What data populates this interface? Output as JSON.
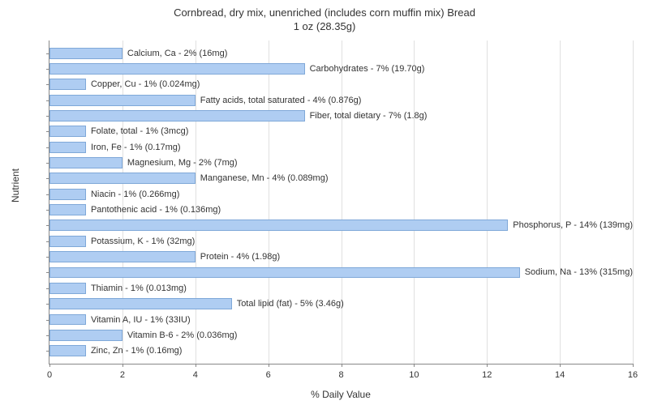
{
  "chart": {
    "type": "bar-horizontal",
    "title_line1": "Cornbread, dry mix, unenriched (includes corn muffin mix) Bread",
    "title_line2": "1 oz (28.35g)",
    "title_fontsize": 13,
    "xlabel": "% Daily Value",
    "ylabel": "Nutrient",
    "label_fontsize": 12,
    "xlim": [
      0,
      16
    ],
    "xtick_step": 2,
    "xticks": [
      0,
      2,
      4,
      6,
      8,
      10,
      12,
      14,
      16
    ],
    "background_color": "#ffffff",
    "grid_color": "#e0e0e0",
    "axis_color": "#888888",
    "bar_color": "#afcdf2",
    "bar_border_color": "#7fa8d8",
    "bar_label_fontsize": 11,
    "tick_fontsize": 11,
    "items": [
      {
        "label": "Calcium, Ca - 2% (16mg)",
        "value": 2
      },
      {
        "label": "Carbohydrates - 7% (19.70g)",
        "value": 7
      },
      {
        "label": "Copper, Cu - 1% (0.024mg)",
        "value": 1
      },
      {
        "label": "Fatty acids, total saturated - 4% (0.876g)",
        "value": 4
      },
      {
        "label": "Fiber, total dietary - 7% (1.8g)",
        "value": 7
      },
      {
        "label": "Folate, total - 1% (3mcg)",
        "value": 1
      },
      {
        "label": "Iron, Fe - 1% (0.17mg)",
        "value": 1
      },
      {
        "label": "Magnesium, Mg - 2% (7mg)",
        "value": 2
      },
      {
        "label": "Manganese, Mn - 4% (0.089mg)",
        "value": 4
      },
      {
        "label": "Niacin - 1% (0.266mg)",
        "value": 1
      },
      {
        "label": "Pantothenic acid - 1% (0.136mg)",
        "value": 1
      },
      {
        "label": "Phosphorus, P - 14% (139mg)",
        "value": 14
      },
      {
        "label": "Potassium, K - 1% (32mg)",
        "value": 1
      },
      {
        "label": "Protein - 4% (1.98g)",
        "value": 4
      },
      {
        "label": "Sodium, Na - 13% (315mg)",
        "value": 13
      },
      {
        "label": "Thiamin - 1% (0.013mg)",
        "value": 1
      },
      {
        "label": "Total lipid (fat) - 5% (3.46g)",
        "value": 5
      },
      {
        "label": "Vitamin A, IU - 1% (33IU)",
        "value": 1
      },
      {
        "label": "Vitamin B-6 - 2% (0.036mg)",
        "value": 2
      },
      {
        "label": "Zinc, Zn - 1% (0.16mg)",
        "value": 1
      }
    ]
  }
}
